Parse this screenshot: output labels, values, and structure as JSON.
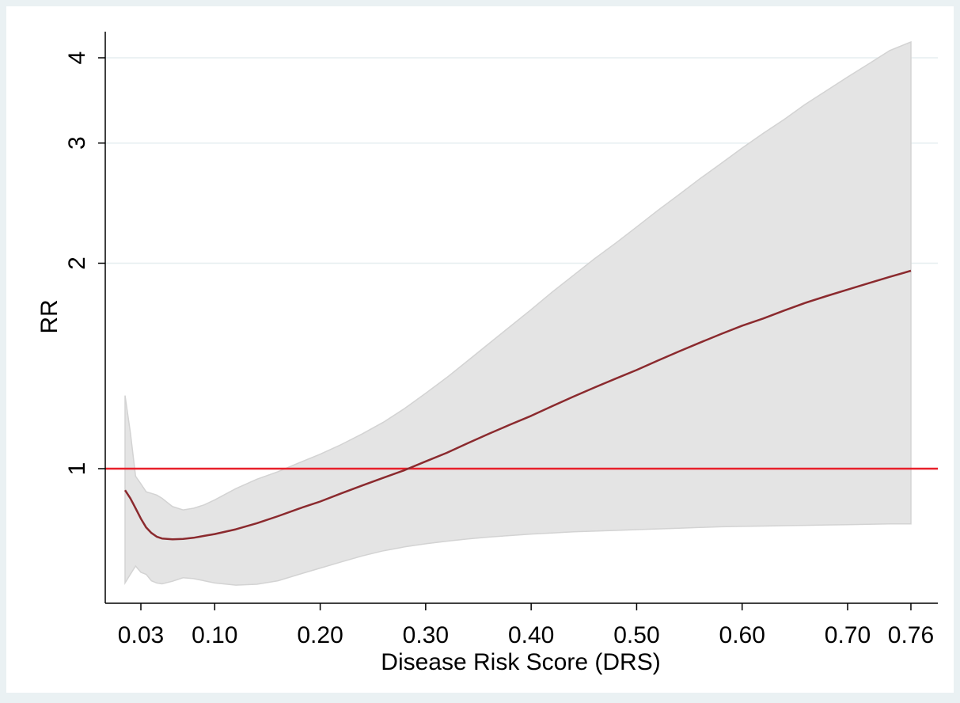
{
  "chart_data": {
    "type": "line",
    "xlabel": "Disease Risk Score (DRS)",
    "ylabel": "RR",
    "x_ticks": [
      0.03,
      0.1,
      0.2,
      0.3,
      0.4,
      0.5,
      0.6,
      0.7,
      0.76
    ],
    "x_tick_labels": [
      "0.03",
      "0.10",
      "0.20",
      "0.30",
      "0.40",
      "0.50",
      "0.60",
      "0.70",
      "0.76"
    ],
    "y_ticks": [
      1,
      2,
      3,
      4
    ],
    "y_tick_labels": [
      "1",
      "2",
      "3",
      "4"
    ],
    "y_scale": "log",
    "xlim": [
      0.0,
      0.79
    ],
    "ylim": [
      0.67,
      4.25
    ],
    "grid": "horizontal",
    "reference_line": {
      "y": 1,
      "color": "#e8202a"
    },
    "series": [
      {
        "type": "line",
        "color": "#8b2a2e",
        "x": [
          0.015,
          0.02,
          0.025,
          0.03,
          0.035,
          0.04,
          0.045,
          0.05,
          0.06,
          0.07,
          0.08,
          0.09,
          0.1,
          0.12,
          0.14,
          0.16,
          0.18,
          0.2,
          0.22,
          0.24,
          0.26,
          0.28,
          0.3,
          0.32,
          0.34,
          0.36,
          0.38,
          0.4,
          0.42,
          0.44,
          0.46,
          0.48,
          0.5,
          0.52,
          0.54,
          0.56,
          0.58,
          0.6,
          0.62,
          0.64,
          0.66,
          0.68,
          0.7,
          0.72,
          0.74,
          0.76
        ],
        "y": [
          0.93,
          0.905,
          0.875,
          0.845,
          0.82,
          0.805,
          0.795,
          0.79,
          0.788,
          0.789,
          0.792,
          0.797,
          0.802,
          0.815,
          0.832,
          0.852,
          0.874,
          0.895,
          0.92,
          0.945,
          0.97,
          0.995,
          1.025,
          1.055,
          1.09,
          1.125,
          1.16,
          1.195,
          1.235,
          1.275,
          1.315,
          1.355,
          1.395,
          1.44,
          1.485,
          1.53,
          1.575,
          1.62,
          1.66,
          1.705,
          1.75,
          1.79,
          1.83,
          1.87,
          1.91,
          1.95
        ]
      },
      {
        "type": "band",
        "color": "#e4e4e4",
        "x": [
          0.015,
          0.02,
          0.025,
          0.03,
          0.035,
          0.04,
          0.045,
          0.05,
          0.06,
          0.07,
          0.08,
          0.09,
          0.1,
          0.12,
          0.14,
          0.16,
          0.18,
          0.2,
          0.22,
          0.24,
          0.26,
          0.28,
          0.3,
          0.32,
          0.34,
          0.36,
          0.38,
          0.4,
          0.42,
          0.44,
          0.46,
          0.48,
          0.5,
          0.52,
          0.54,
          0.56,
          0.58,
          0.6,
          0.62,
          0.64,
          0.66,
          0.68,
          0.7,
          0.72,
          0.74,
          0.76
        ],
        "upper": [
          1.28,
          1.13,
          0.975,
          0.95,
          0.925,
          0.92,
          0.915,
          0.905,
          0.88,
          0.87,
          0.875,
          0.885,
          0.9,
          0.935,
          0.965,
          0.99,
          1.02,
          1.05,
          1.085,
          1.125,
          1.17,
          1.225,
          1.29,
          1.36,
          1.44,
          1.525,
          1.615,
          1.71,
          1.815,
          1.92,
          2.03,
          2.14,
          2.26,
          2.39,
          2.52,
          2.66,
          2.8,
          2.95,
          3.1,
          3.25,
          3.42,
          3.58,
          3.75,
          3.92,
          4.1,
          4.22
        ]
      },
      {
        "type": "band_lower",
        "x": [
          0.015,
          0.02,
          0.025,
          0.03,
          0.035,
          0.04,
          0.045,
          0.05,
          0.06,
          0.07,
          0.08,
          0.09,
          0.1,
          0.12,
          0.14,
          0.16,
          0.18,
          0.2,
          0.22,
          0.24,
          0.26,
          0.28,
          0.3,
          0.32,
          0.34,
          0.36,
          0.38,
          0.4,
          0.42,
          0.44,
          0.46,
          0.48,
          0.5,
          0.52,
          0.54,
          0.56,
          0.58,
          0.6,
          0.62,
          0.64,
          0.66,
          0.68,
          0.7,
          0.72,
          0.74,
          0.76
        ],
        "lower": [
          0.68,
          0.7,
          0.72,
          0.705,
          0.7,
          0.685,
          0.68,
          0.678,
          0.684,
          0.692,
          0.69,
          0.685,
          0.68,
          0.675,
          0.677,
          0.685,
          0.7,
          0.715,
          0.73,
          0.745,
          0.758,
          0.768,
          0.776,
          0.783,
          0.789,
          0.794,
          0.798,
          0.802,
          0.805,
          0.808,
          0.81,
          0.812,
          0.814,
          0.816,
          0.818,
          0.82,
          0.822,
          0.823,
          0.824,
          0.825,
          0.826,
          0.827,
          0.828,
          0.829,
          0.83,
          0.83
        ]
      }
    ]
  }
}
